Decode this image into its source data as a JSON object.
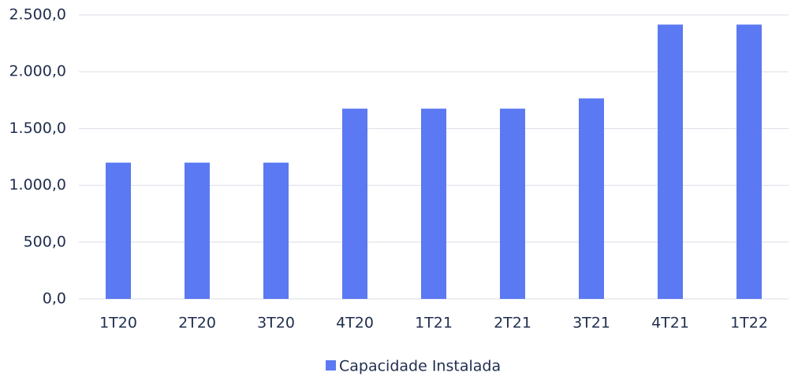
{
  "chart_data": {
    "type": "bar",
    "categories": [
      "1T20",
      "2T20",
      "3T20",
      "4T20",
      "1T21",
      "2T21",
      "3T21",
      "4T21",
      "1T22"
    ],
    "series": [
      {
        "name": "Capacidade Instalada",
        "color": "#5b79f2",
        "values": [
          1200,
          1200,
          1200,
          1675,
          1675,
          1675,
          1765,
          2415,
          2415
        ]
      }
    ],
    "ylim": [
      0,
      2500
    ],
    "yticks": [
      {
        "value": 0,
        "label": "0,0"
      },
      {
        "value": 500,
        "label": "500,0"
      },
      {
        "value": 1000,
        "label": "1.000,0"
      },
      {
        "value": 1500,
        "label": "1.500,0"
      },
      {
        "value": 2000,
        "label": "2.000,0"
      },
      {
        "value": 2500,
        "label": "2.500,0"
      }
    ],
    "grid": true,
    "legend": "bottom"
  }
}
